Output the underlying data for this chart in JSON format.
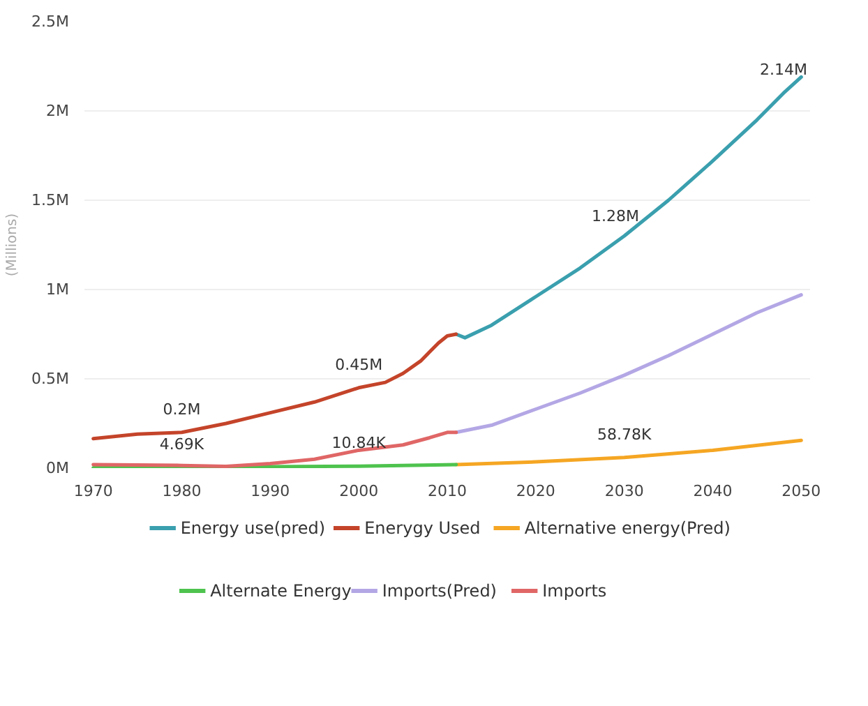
{
  "chart_data": {
    "type": "line",
    "ylabel": "(Millions)",
    "xlim": [
      1969,
      2051
    ],
    "xticks": [
      1970,
      1980,
      1990,
      2000,
      2010,
      2020,
      2030,
      2040,
      2050
    ],
    "ylim": [
      0,
      2500000
    ],
    "yticks": [
      {
        "value": 0,
        "label": "0M"
      },
      {
        "value": 500000,
        "label": "0.5M"
      },
      {
        "value": 1000000,
        "label": "1M"
      },
      {
        "value": 1500000,
        "label": "1.5M"
      },
      {
        "value": 2000000,
        "label": "2M"
      },
      {
        "value": 2500000,
        "label": "2.5M"
      }
    ],
    "grid": "y",
    "legend": "bottom",
    "line_style": "solid",
    "series": [
      {
        "name": "Energy use(pred)",
        "color": "#3a9fae",
        "x": [
          2011,
          2012,
          2015,
          2020,
          2025,
          2030,
          2035,
          2040,
          2045,
          2048,
          2050
        ],
        "values": [
          750000,
          730000,
          800000,
          960000,
          1120000,
          1300000,
          1500000,
          1720000,
          1950000,
          2100000,
          2190000
        ]
      },
      {
        "name": "Enerygy Used",
        "color": "#c4442a",
        "x": [
          1970,
          1975,
          1980,
          1985,
          1990,
          1995,
          2000,
          2003,
          2005,
          2007,
          2008,
          2009,
          2010,
          2011
        ],
        "values": [
          165000,
          190000,
          200000,
          250000,
          310000,
          370000,
          450000,
          480000,
          530000,
          600000,
          650000,
          700000,
          740000,
          750000
        ]
      },
      {
        "name": "Alternative energy(Pred)",
        "color": "#f5a623",
        "x": [
          2011,
          2020,
          2030,
          2040,
          2050
        ],
        "values": [
          20000,
          35000,
          60000,
          100000,
          155000
        ]
      },
      {
        "name": "Alternate Energy",
        "color": "#4ec34e",
        "x": [
          1970,
          1980,
          1990,
          2000,
          2011
        ],
        "values": [
          2000,
          5000,
          8000,
          11000,
          20000
        ]
      },
      {
        "name": "Imports(Pred)",
        "color": "#b4a7e5",
        "x": [
          2011,
          2015,
          2020,
          2025,
          2030,
          2035,
          2040,
          2045,
          2050
        ],
        "values": [
          200000,
          240000,
          330000,
          420000,
          520000,
          630000,
          750000,
          870000,
          970000
        ]
      },
      {
        "name": "Imports",
        "color": "#e06666",
        "x": [
          1970,
          1980,
          1985,
          1990,
          1995,
          2000,
          2005,
          2008,
          2010,
          2011
        ],
        "values": [
          20000,
          15000,
          10000,
          25000,
          50000,
          100000,
          130000,
          170000,
          200000,
          200000
        ]
      }
    ],
    "annotations": [
      {
        "text": "0.2M",
        "x": 1980,
        "y": 200000
      },
      {
        "text": "0.45M",
        "x": 2000,
        "y": 450000
      },
      {
        "text": "1.28M",
        "x": 2029,
        "y": 1280000
      },
      {
        "text": "2.14M",
        "x": 2048,
        "y": 2100000
      },
      {
        "text": "4.69K",
        "x": 1980,
        "y": 5000
      },
      {
        "text": "10.84K",
        "x": 2000,
        "y": 11000
      },
      {
        "text": "58.78K",
        "x": 2030,
        "y": 60000
      }
    ]
  }
}
